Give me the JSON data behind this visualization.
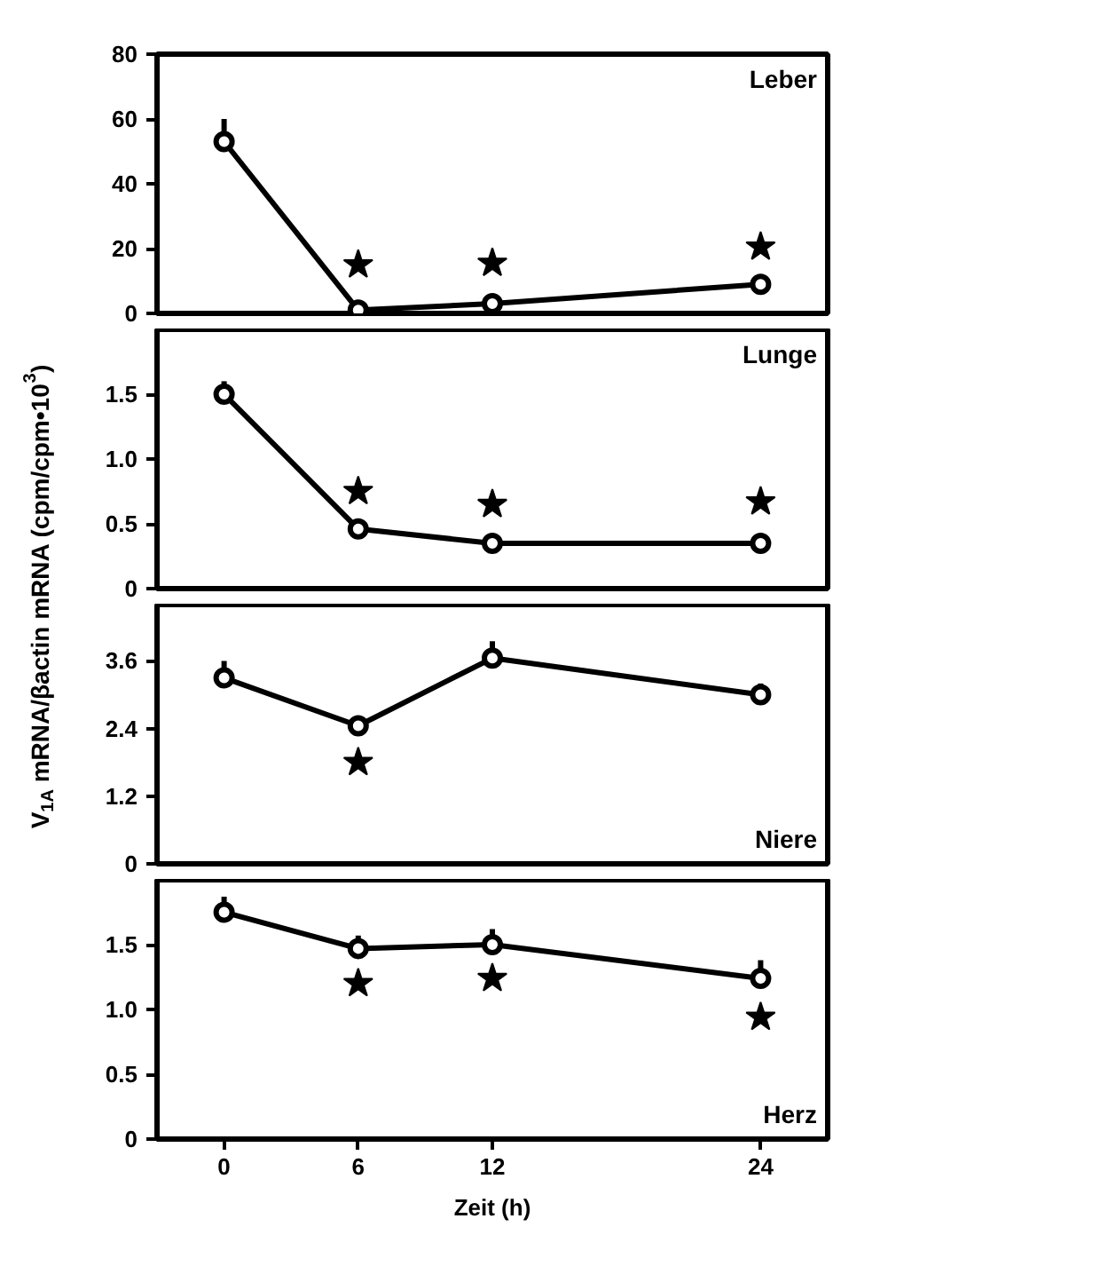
{
  "chart_data": [
    {
      "type": "line",
      "title": "Leber",
      "ylabel": "V$_{1A}$ mRNA/βactin mRNA (cpm/cpm•10$^{3}$)",
      "x": [
        0,
        6,
        12,
        24
      ],
      "xlim": [
        -3,
        27
      ],
      "ylim": [
        0,
        80
      ],
      "yticks": [
        0,
        20,
        40,
        60,
        80
      ],
      "tick_labels": "y",
      "marker": "circle",
      "series": [
        {
          "color": "#000000",
          "values": [
            53,
            1,
            3,
            9
          ],
          "errors": [
            [
              53,
              60
            ],
            null,
            null,
            null
          ]
        },
        {
          "type": "scatter",
          "marker": "star",
          "color": "#000000",
          "values": [
            null,
            15,
            15.5,
            20.5
          ]
        }
      ]
    },
    {
      "type": "line",
      "title": "Lunge",
      "x": [
        0,
        6,
        12,
        24
      ],
      "xlim": [
        -3,
        27
      ],
      "ylim": [
        0,
        2
      ],
      "yticks": [
        0,
        0.5,
        {
          "value": 1,
          "label": "1.0"
        },
        1.5
      ],
      "tick_labels": "y",
      "marker": "circle",
      "series": [
        {
          "color": "#000000",
          "values": [
            1.5,
            0.46,
            0.35,
            0.35
          ],
          "errors": [
            [
              1.5,
              1.6
            ],
            null,
            null,
            [
              0.35,
              0.4
            ]
          ]
        },
        {
          "type": "scatter",
          "marker": "star",
          "color": "#000000",
          "values": [
            null,
            0.75,
            0.65,
            0.67
          ]
        }
      ]
    },
    {
      "type": "line",
      "title": "Niere",
      "x": [
        0,
        6,
        12,
        24
      ],
      "xlim": [
        -3,
        27
      ],
      "ylim": [
        0,
        4.6
      ],
      "yticks": [
        0,
        1.2,
        2.4,
        3.6
      ],
      "tick_labels": "y",
      "marker": "circle",
      "series": [
        {
          "color": "#000000",
          "values": [
            3.3,
            2.45,
            3.65,
            3.0
          ],
          "errors": [
            [
              3.3,
              3.6
            ],
            null,
            [
              3.65,
              3.95
            ],
            [
              3.0,
              3.2
            ]
          ]
        },
        {
          "type": "scatter",
          "marker": "star",
          "color": "#000000",
          "values": [
            null,
            1.8,
            null,
            null
          ]
        }
      ]
    },
    {
      "type": "line",
      "title": "Herz",
      "xlabel": "Zeit (h)",
      "x": [
        0,
        6,
        12,
        24
      ],
      "xlim": [
        -3,
        27
      ],
      "xticks": [
        0,
        6,
        12,
        24
      ],
      "ylim": [
        0,
        2
      ],
      "yticks": [
        0,
        0.5,
        {
          "value": 1,
          "label": "1.0"
        },
        1.5
      ],
      "marker": "circle",
      "series": [
        {
          "color": "#000000",
          "values": [
            1.75,
            1.47,
            1.5,
            1.24
          ],
          "errors": [
            [
              1.75,
              1.87
            ],
            [
              1.47,
              1.57
            ],
            [
              1.5,
              1.62
            ],
            [
              1.24,
              1.38
            ]
          ]
        },
        {
          "type": "scatter",
          "marker": "star",
          "color": "#000000",
          "values": [
            null,
            1.2,
            1.24,
            0.94
          ]
        }
      ]
    }
  ]
}
